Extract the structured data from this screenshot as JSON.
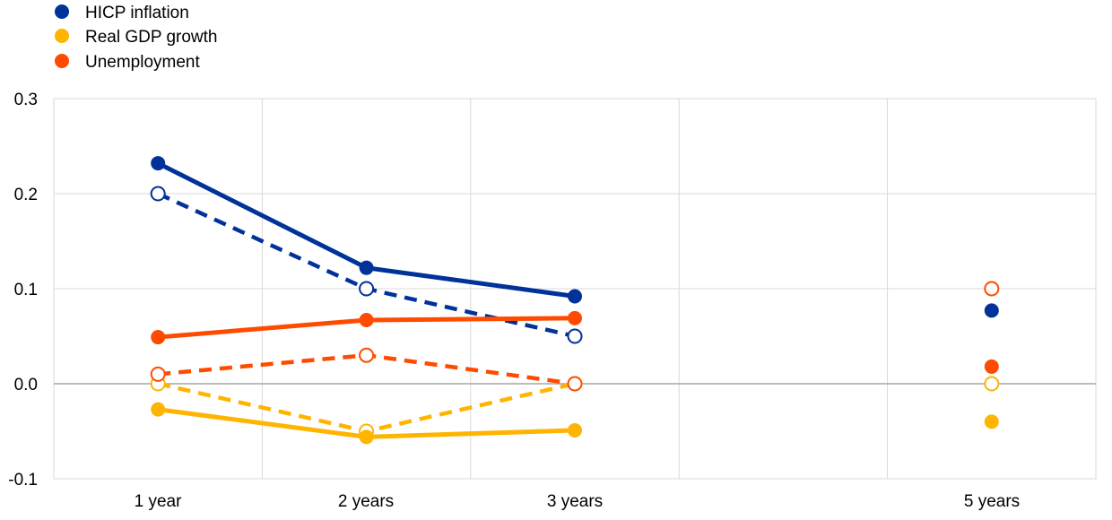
{
  "chart_data": {
    "type": "line",
    "title": "",
    "xlabel": "",
    "ylabel": "",
    "categories": [
      "1 year",
      "2 years",
      "3 years",
      "",
      "5 years"
    ],
    "ylim": [
      -0.1,
      0.3
    ],
    "yticks": [
      "-0.1",
      "0.0",
      "0.1",
      "0.2",
      "0.3"
    ],
    "grid": true,
    "legend_position": "top-left",
    "series": [
      {
        "name": "HICP inflation",
        "color": "#003299",
        "values": [
          0.232,
          0.122,
          0.092,
          null,
          0.077
        ],
        "comparison_values": [
          0.2,
          0.1,
          0.05,
          null,
          null
        ]
      },
      {
        "name": "Real GDP growth",
        "color": "#FFB400",
        "values": [
          -0.027,
          -0.056,
          -0.049,
          null,
          -0.04
        ],
        "comparison_values": [
          0.0,
          -0.05,
          0.0,
          null,
          0.0
        ]
      },
      {
        "name": "Unemployment",
        "color": "#FF4B00",
        "values": [
          0.049,
          0.067,
          0.069,
          null,
          0.018
        ],
        "comparison_values": [
          0.01,
          0.03,
          0.0,
          null,
          0.1
        ]
      }
    ]
  }
}
